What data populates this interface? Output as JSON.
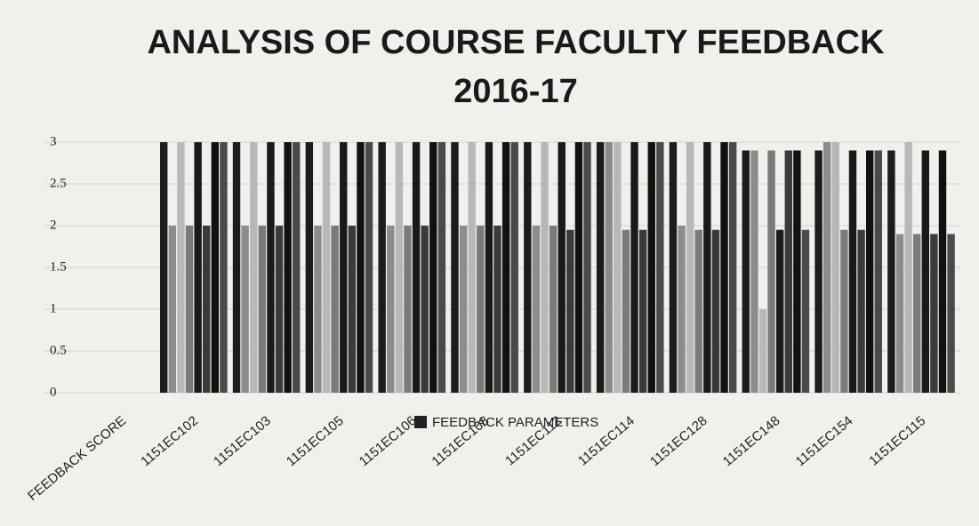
{
  "chart_data": {
    "type": "bar",
    "title": "ANALYSIS OF COURSE FACULTY FEEDBACK",
    "subtitle": "2016-17",
    "y_label": "FEEDBACK SCORE",
    "categories": [
      "1151EC102",
      "1151EC103",
      "1151EC105",
      "1151EC106",
      "1151EC108",
      "1151EC112",
      "1151EC114",
      "1151EC128",
      "1151EC148",
      "1151EC154",
      "1151EC115"
    ],
    "series": [
      {
        "color": "#1c1c1c",
        "values": [
          3,
          3,
          3,
          3,
          3,
          3,
          3,
          3,
          2.9,
          2.9,
          2.9
        ]
      },
      {
        "color": "#8c8c8c",
        "values": [
          2,
          2,
          2,
          2,
          2,
          2,
          3,
          2,
          2.9,
          3,
          1.9
        ]
      },
      {
        "color": "#b8b8b8",
        "values": [
          3,
          3,
          3,
          3,
          3,
          3,
          3,
          3,
          1,
          3,
          3
        ]
      },
      {
        "color": "#7a7a7a",
        "values": [
          2,
          2,
          2,
          2,
          2,
          2,
          1.95,
          1.95,
          2.9,
          1.95,
          1.9
        ]
      },
      {
        "color": "#1a1a1a",
        "values": [
          3,
          3,
          3,
          3,
          3,
          3,
          3,
          3,
          1.95,
          2.9,
          2.9
        ]
      },
      {
        "color": "#3a3a3a",
        "values": [
          2,
          2,
          2,
          2,
          2,
          1.95,
          1.95,
          1.95,
          2.9,
          1.95,
          1.9
        ]
      },
      {
        "color": "#111111",
        "values": [
          3,
          3,
          3,
          3,
          3,
          3,
          3,
          3,
          2.9,
          2.9,
          2.9
        ]
      },
      {
        "color": "#4a4a4a",
        "values": [
          3,
          3,
          3,
          3,
          3,
          3,
          3,
          3,
          1.95,
          2.9,
          1.9
        ]
      }
    ],
    "legend": {
      "label": "FEEDBACK PARAMETERS",
      "color": "#222222"
    },
    "ylim": [
      0,
      3
    ],
    "yticks": [
      0,
      0.5,
      1,
      1.5,
      2,
      2.5,
      3
    ],
    "grid": true
  }
}
